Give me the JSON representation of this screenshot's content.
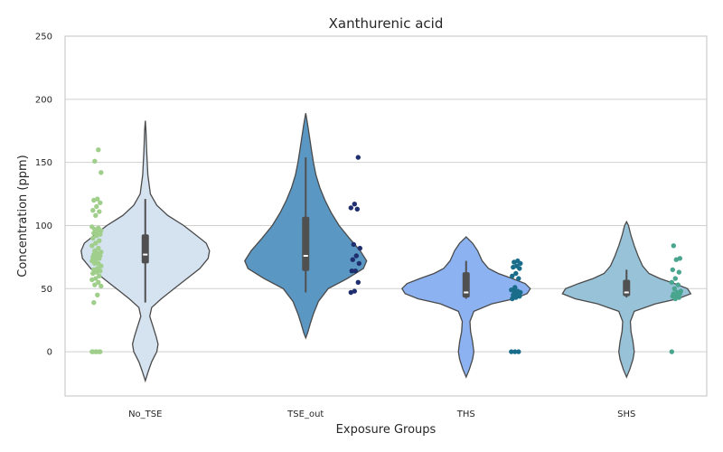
{
  "chart_data": {
    "type": "violin",
    "title": "Xanthurenic acid",
    "xlabel": "Exposure Groups",
    "ylabel": "Concentration (ppm)",
    "ylim": [
      -35,
      250
    ],
    "yticks": [
      0,
      50,
      100,
      150,
      200,
      250
    ],
    "grid": true,
    "categories": [
      "No_TSE",
      "TSE_out",
      "THS",
      "SHS"
    ],
    "groups": [
      {
        "name": "No_TSE",
        "fill": "#d5e2f0",
        "point_color": "#a0cf8c",
        "density": [
          [
            -23,
            0
          ],
          [
            -15,
            0.05
          ],
          [
            -8,
            0.1
          ],
          [
            0,
            0.18
          ],
          [
            6,
            0.2
          ],
          [
            12,
            0.17
          ],
          [
            20,
            0.12
          ],
          [
            28,
            0.07
          ],
          [
            35,
            0.1
          ],
          [
            42,
            0.25
          ],
          [
            50,
            0.45
          ],
          [
            58,
            0.65
          ],
          [
            66,
            0.85
          ],
          [
            74,
            0.98
          ],
          [
            80,
            1.0
          ],
          [
            86,
            0.95
          ],
          [
            92,
            0.8
          ],
          [
            100,
            0.6
          ],
          [
            108,
            0.35
          ],
          [
            116,
            0.18
          ],
          [
            125,
            0.08
          ],
          [
            140,
            0.04
          ],
          [
            160,
            0.02
          ],
          [
            175,
            0.01
          ],
          [
            183,
            0
          ]
        ],
        "box": {
          "q1": 70,
          "median": 77,
          "q3": 93,
          "whisker_low": 39,
          "whisker_high": 121
        },
        "points": [
          0,
          0,
          0,
          0,
          0,
          0,
          39,
          45,
          52,
          53,
          55,
          57,
          58,
          60,
          62,
          63,
          64,
          65,
          66,
          68,
          70,
          70,
          72,
          73,
          74,
          75,
          75,
          76,
          77,
          78,
          79,
          80,
          82,
          84,
          86,
          88,
          90,
          92,
          93,
          94,
          95,
          96,
          97,
          98,
          99,
          108,
          111,
          112,
          115,
          118,
          120,
          121,
          142,
          151,
          160
        ]
      },
      {
        "name": "TSE_out",
        "fill": "#5b97c3",
        "point_color": "#1f2e6e",
        "density": [
          [
            11,
            0
          ],
          [
            15,
            0.03
          ],
          [
            22,
            0.07
          ],
          [
            30,
            0.12
          ],
          [
            40,
            0.2
          ],
          [
            50,
            0.35
          ],
          [
            58,
            0.65
          ],
          [
            66,
            0.9
          ],
          [
            72,
            0.95
          ],
          [
            80,
            0.85
          ],
          [
            90,
            0.68
          ],
          [
            100,
            0.52
          ],
          [
            110,
            0.4
          ],
          [
            120,
            0.3
          ],
          [
            130,
            0.22
          ],
          [
            140,
            0.16
          ],
          [
            150,
            0.12
          ],
          [
            160,
            0.09
          ],
          [
            170,
            0.06
          ],
          [
            180,
            0.03
          ],
          [
            189,
            0
          ]
        ],
        "box": {
          "q1": 64,
          "median": 76,
          "q3": 107,
          "whisker_low": 47,
          "whisker_high": 154
        },
        "points": [
          47,
          48,
          55,
          64,
          64,
          70,
          73,
          76,
          82,
          85,
          113,
          114,
          117,
          154
        ]
      },
      {
        "name": "THS",
        "fill": "#8cb2f2",
        "point_color": "#1a6d8a",
        "density": [
          [
            -20,
            0
          ],
          [
            -14,
            0.05
          ],
          [
            -6,
            0.1
          ],
          [
            0,
            0.12
          ],
          [
            8,
            0.1
          ],
          [
            16,
            0.07
          ],
          [
            24,
            0.06
          ],
          [
            32,
            0.12
          ],
          [
            38,
            0.4
          ],
          [
            42,
            0.75
          ],
          [
            46,
            0.95
          ],
          [
            50,
            1.0
          ],
          [
            54,
            0.92
          ],
          [
            58,
            0.72
          ],
          [
            62,
            0.5
          ],
          [
            66,
            0.35
          ],
          [
            72,
            0.25
          ],
          [
            80,
            0.18
          ],
          [
            86,
            0.1
          ],
          [
            91,
            0
          ]
        ],
        "box": {
          "q1": 43,
          "median": 47,
          "q3": 63,
          "whisker_low": 42,
          "whisker_high": 72
        },
        "points": [
          0,
          0,
          0,
          42,
          43,
          44,
          45,
          46,
          47,
          48,
          48,
          49,
          51,
          58,
          60,
          62,
          66,
          67,
          68,
          70,
          71,
          72
        ]
      },
      {
        "name": "SHS",
        "fill": "#98c2d8",
        "point_color": "#4aa58f",
        "density": [
          [
            -20,
            0
          ],
          [
            -14,
            0.05
          ],
          [
            -6,
            0.1
          ],
          [
            0,
            0.12
          ],
          [
            8,
            0.1
          ],
          [
            16,
            0.07
          ],
          [
            24,
            0.06
          ],
          [
            32,
            0.12
          ],
          [
            38,
            0.45
          ],
          [
            42,
            0.8
          ],
          [
            46,
            1.0
          ],
          [
            50,
            0.95
          ],
          [
            54,
            0.75
          ],
          [
            58,
            0.52
          ],
          [
            62,
            0.35
          ],
          [
            68,
            0.25
          ],
          [
            76,
            0.18
          ],
          [
            84,
            0.12
          ],
          [
            92,
            0.07
          ],
          [
            100,
            0.03
          ],
          [
            103,
            0
          ]
        ],
        "box": {
          "q1": 44,
          "median": 47,
          "q3": 57,
          "whisker_low": 43,
          "whisker_high": 65
        },
        "points": [
          0,
          42,
          43,
          44,
          45,
          46,
          46,
          47,
          48,
          50,
          53,
          55,
          58,
          63,
          65,
          73,
          74,
          84
        ]
      }
    ]
  }
}
